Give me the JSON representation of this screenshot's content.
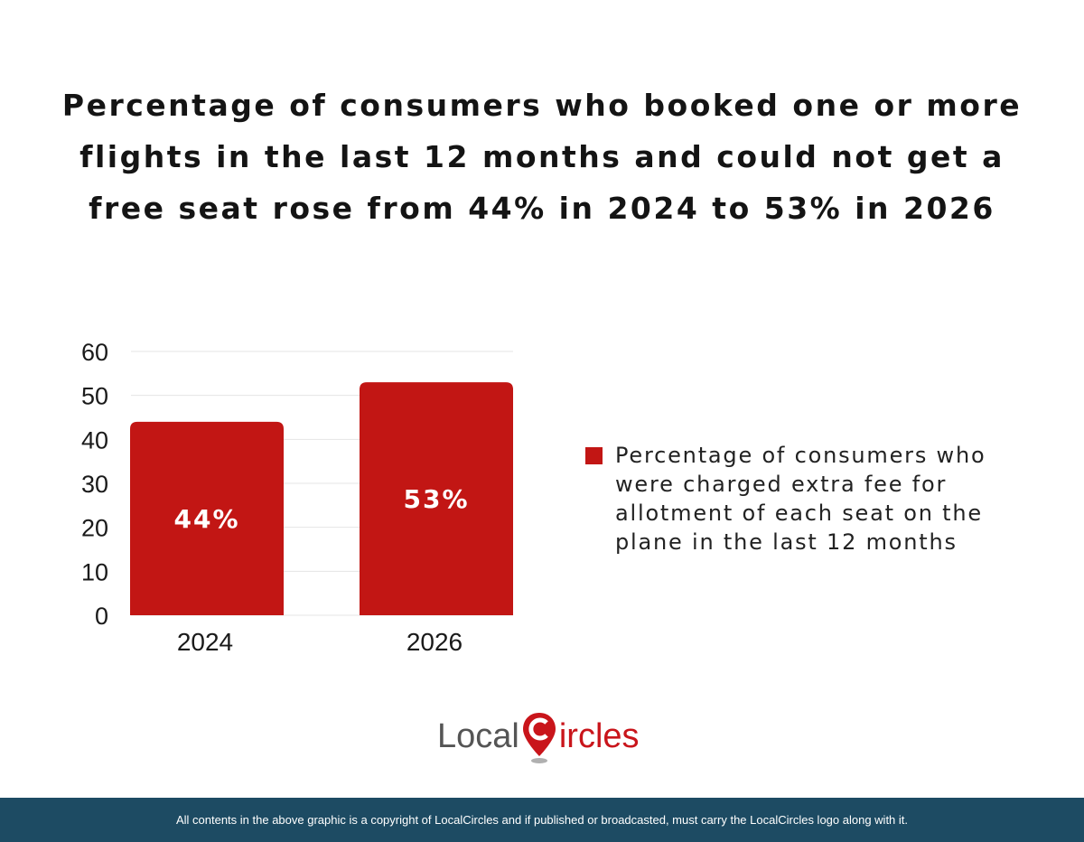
{
  "title": "Percentage of consumers who booked one or more flights in the last 12 months and could not get a free seat rose from 44% in 2024 to 53% in 2026",
  "chart_data": {
    "type": "bar",
    "categories": [
      "2024",
      "2026"
    ],
    "values": [
      44,
      53
    ],
    "data_labels": [
      "44%",
      "53%"
    ],
    "series": [
      {
        "name": "Percentage of consumers who were charged extra fee for allotment of each seat on the plane in the last 12 months",
        "values": [
          44,
          53
        ]
      }
    ],
    "ylim": [
      0,
      60
    ],
    "yticks": [
      "0",
      "10",
      "20",
      "30",
      "40",
      "50",
      "60"
    ],
    "grid": true,
    "legend": "right",
    "xlabel": "",
    "ylabel": ""
  },
  "colors": {
    "bar": "#c21614",
    "grid": "#e4e4e4",
    "footer_bg": "#1d4b63",
    "brand_red": "#c9151b"
  },
  "legend": {
    "label": "Percentage of consumers who were charged extra fee for allotment of each seat on the plane in the last 12 months"
  },
  "logo": {
    "text_local": "Local",
    "text_circles": "ircles"
  },
  "footer": {
    "text": "All contents in the above graphic is a copyright of LocalCircles and if published or broadcasted, must carry the LocalCircles logo along with it."
  }
}
